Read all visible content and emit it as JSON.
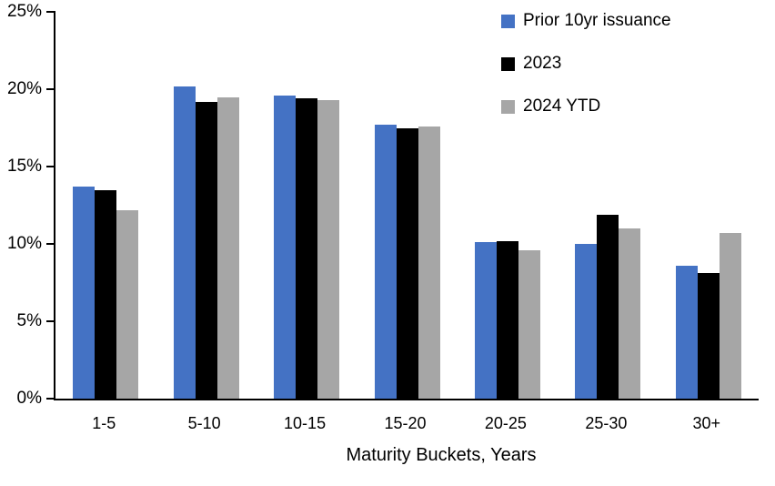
{
  "chart_data": {
    "type": "bar",
    "title": "",
    "categories": [
      "1-5",
      "5-10",
      "10-15",
      "15-20",
      "20-25",
      "25-30",
      "30+"
    ],
    "series": [
      {
        "name": "Prior 10yr issuance",
        "color": "#4472C4",
        "values": [
          13.7,
          20.2,
          19.6,
          17.7,
          10.1,
          10.0,
          8.6
        ]
      },
      {
        "name": "2023",
        "color": "#000000",
        "values": [
          13.5,
          19.2,
          19.4,
          17.5,
          10.2,
          11.9,
          8.1
        ]
      },
      {
        "name": "2024 YTD",
        "color": "#A6A6A6",
        "values": [
          12.2,
          19.5,
          19.3,
          17.6,
          9.6,
          11.0,
          10.7
        ]
      }
    ],
    "xlabel": "Maturity Buckets, Years",
    "ylabel": "",
    "ylim": [
      0,
      25
    ],
    "ytick_step": 5,
    "ytick_labels": [
      "0%",
      "5%",
      "10%",
      "15%",
      "20%",
      "25%"
    ],
    "legend_position": "top-right",
    "grid": false,
    "axis_color": "#000000",
    "background_color": "#FFFFFF"
  }
}
